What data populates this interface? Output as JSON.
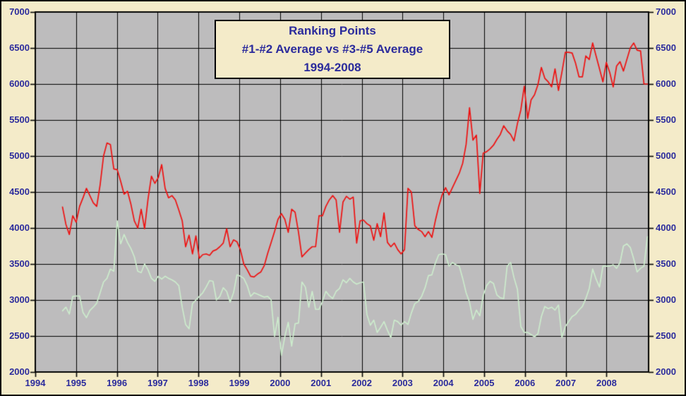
{
  "title": {
    "line1": "Ranking Points",
    "line2": "#1-#2 Average vs #3-#5 Average",
    "line3": "1994-2008"
  },
  "colors": {
    "page_background": "#f4ebc9",
    "plot_background": "#bdbcbd",
    "grid": "#000000",
    "axis_text": "#2b2b9c",
    "series1_red": "#ef1111",
    "series2_green": "#cdeccd"
  },
  "chart_data": {
    "type": "line",
    "title": "Ranking Points #1-#2 Average vs #3-#5 Average 1994-2008",
    "xlabel": "",
    "ylabel": "",
    "grid": "both",
    "legend_position": "none",
    "x_axis": {
      "min": 1994,
      "max": 2009.03,
      "tick_years": [
        1994,
        1995,
        1996,
        1997,
        1998,
        1999,
        2000,
        2001,
        2002,
        2003,
        2004,
        2005,
        2006,
        2007,
        2008
      ]
    },
    "y_axis": {
      "min": 2000,
      "max": 7000,
      "tick_step": 500,
      "ticks_top_to_bottom": [
        7000,
        6500,
        6000,
        5500,
        5000,
        4500,
        4000,
        3500,
        3000,
        2500,
        2000
      ]
    },
    "x_start": 1994.667,
    "x_step": 0.083821,
    "series": [
      {
        "name": "#1-#2 Average",
        "color": "#ef1111",
        "values": [
          4290,
          4050,
          3910,
          4170,
          4080,
          4300,
          4420,
          4550,
          4450,
          4350,
          4300,
          4600,
          5000,
          5180,
          5160,
          4820,
          4810,
          4650,
          4470,
          4510,
          4330,
          4100,
          4000,
          4260,
          3990,
          4400,
          4720,
          4620,
          4700,
          4880,
          4550,
          4420,
          4450,
          4390,
          4250,
          4100,
          3740,
          3900,
          3640,
          3890,
          3580,
          3630,
          3640,
          3620,
          3680,
          3700,
          3740,
          3790,
          3990,
          3740,
          3835,
          3810,
          3700,
          3500,
          3420,
          3330,
          3320,
          3360,
          3390,
          3480,
          3650,
          3800,
          3950,
          4120,
          4200,
          4120,
          3940,
          4260,
          4220,
          3940,
          3600,
          3650,
          3700,
          3740,
          3740,
          4170,
          4170,
          4300,
          4390,
          4450,
          4390,
          3940,
          4360,
          4440,
          4400,
          4430,
          3790,
          4100,
          4110,
          4060,
          4030,
          3830,
          4060,
          3880,
          4210,
          3800,
          3740,
          3790,
          3700,
          3640,
          3700,
          4550,
          4500,
          4030,
          3980,
          3950,
          3880,
          3950,
          3870,
          4100,
          4300,
          4460,
          4560,
          4460,
          4560,
          4660,
          4760,
          4900,
          5160,
          5670,
          5220,
          5290,
          4480,
          5040,
          5060,
          5100,
          5150,
          5230,
          5300,
          5420,
          5350,
          5300,
          5210,
          5450,
          5640,
          5970,
          5520,
          5780,
          5850,
          5990,
          6230,
          6080,
          6030,
          5960,
          6210,
          5910,
          6160,
          6440,
          6440,
          6430,
          6290,
          6100,
          6100,
          6390,
          6340,
          6570,
          6390,
          6210,
          6030,
          6300,
          6160,
          5960,
          6250,
          6310,
          6180,
          6340,
          6500,
          6570,
          6470,
          6460,
          6000,
          6000
        ]
      },
      {
        "name": "#3-#5 Average",
        "color": "#cdeccd",
        "values": [
          2850,
          2900,
          2805,
          3050,
          3055,
          3055,
          2825,
          2755,
          2855,
          2900,
          2955,
          3100,
          3250,
          3300,
          3430,
          3400,
          4100,
          3780,
          3910,
          3800,
          3715,
          3600,
          3400,
          3380,
          3500,
          3420,
          3300,
          3260,
          3330,
          3290,
          3330,
          3300,
          3280,
          3250,
          3200,
          2900,
          2660,
          2600,
          2950,
          3000,
          3050,
          3100,
          3180,
          3270,
          3260,
          3000,
          3050,
          3170,
          3120,
          2970,
          3100,
          3350,
          3330,
          3300,
          3200,
          3050,
          3100,
          3080,
          3060,
          3040,
          3050,
          3000,
          2495,
          2760,
          2230,
          2490,
          2690,
          2360,
          2670,
          2680,
          3250,
          3180,
          2900,
          3120,
          2870,
          2870,
          2980,
          3120,
          3060,
          3020,
          3120,
          3160,
          3280,
          3240,
          3300,
          3250,
          3220,
          3240,
          3250,
          2800,
          2650,
          2720,
          2550,
          2620,
          2700,
          2580,
          2480,
          2720,
          2700,
          2650,
          2700,
          2660,
          2820,
          2950,
          2980,
          3050,
          3170,
          3340,
          3350,
          3510,
          3630,
          3640,
          3630,
          3470,
          3520,
          3490,
          3470,
          3300,
          3100,
          2970,
          2730,
          2860,
          2780,
          3060,
          3200,
          3260,
          3230,
          3070,
          3030,
          3020,
          3470,
          3520,
          3310,
          3150,
          2630,
          2550,
          2550,
          2520,
          2490,
          2530,
          2770,
          2910,
          2880,
          2900,
          2860,
          2930,
          2480,
          2630,
          2700,
          2770,
          2800,
          2860,
          2910,
          3020,
          3160,
          3430,
          3290,
          3180,
          3470,
          3470,
          3470,
          3490,
          3440,
          3520,
          3750,
          3780,
          3730,
          3570,
          3390,
          3440,
          3470,
          3880
        ]
      }
    ]
  }
}
